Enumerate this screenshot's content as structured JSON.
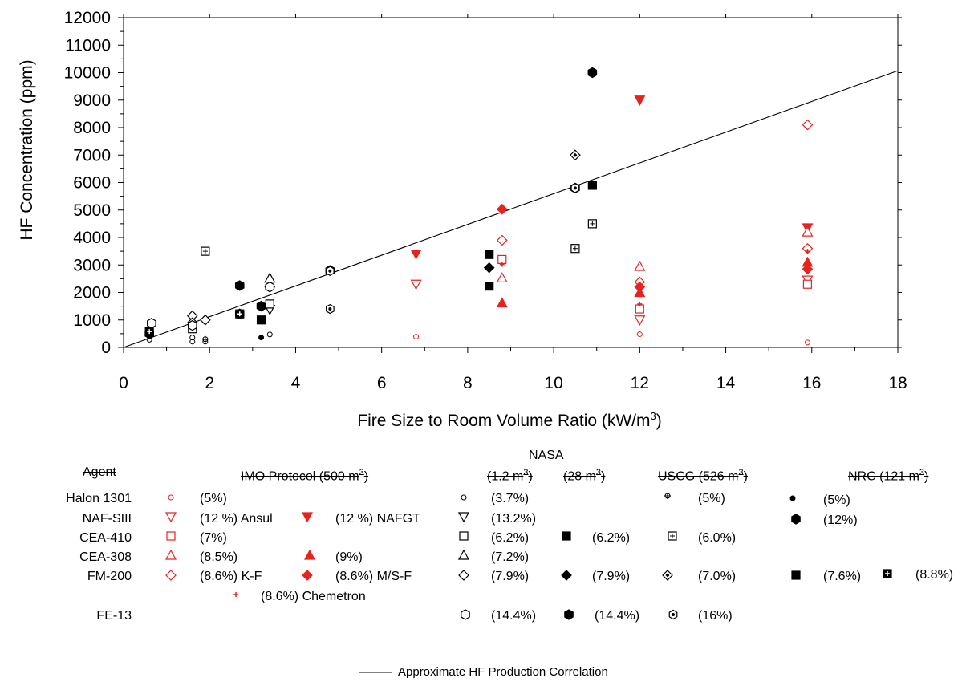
{
  "chart_data": {
    "type": "scatter",
    "xlabel": "Fire Size to Room Volume Ratio (kW/m³)",
    "ylabel": "HF Concentration (ppm)",
    "xlim": [
      0,
      18
    ],
    "ylim": [
      0,
      12000
    ],
    "x_ticks": [
      "0",
      "2",
      "4",
      "6",
      "8",
      "10",
      "12",
      "14",
      "16",
      "18"
    ],
    "y_ticks": [
      "0",
      "1000",
      "2000",
      "3000",
      "4000",
      "5000",
      "6000",
      "7000",
      "8000",
      "9000",
      "10000",
      "11000",
      "12000"
    ],
    "grid": false,
    "line": {
      "name": "Approximate HF Production Correlation",
      "points": [
        [
          0,
          0
        ],
        [
          18,
          10070
        ]
      ]
    },
    "series": [
      {
        "name": "Halon 1301 IMO (5%)",
        "marker": "circle-small",
        "color": "#e8231f",
        "filled": false,
        "points": [
          [
            6.8,
            390
          ],
          [
            12,
            480
          ],
          [
            15.9,
            180
          ]
        ]
      },
      {
        "name": "Halon 1301 NASA 1.2 m³ (3.7%)",
        "marker": "circle-small",
        "color": "#000000",
        "filled": false,
        "points": [
          [
            0.6,
            280
          ],
          [
            1.6,
            360
          ],
          [
            1.6,
            210
          ],
          [
            1.9,
            210
          ],
          [
            3.4,
            470
          ]
        ]
      },
      {
        "name": "Halon 1301 USCG (5%)",
        "marker": "circle-plus-small",
        "color": "#000000",
        "filled": false,
        "points": [
          [
            0.6,
            420
          ],
          [
            1.9,
            300
          ]
        ]
      },
      {
        "name": "Halon 1301 NRC (5%)",
        "marker": "circle-small",
        "color": "#000000",
        "filled": true,
        "points": [
          [
            3.2,
            360
          ]
        ]
      },
      {
        "name": "NAF-SIII IMO (12 %) Ansul",
        "marker": "triangle-down",
        "color": "#e8231f",
        "filled": false,
        "points": [
          [
            6.8,
            2300
          ],
          [
            12,
            1000
          ],
          [
            15.9,
            2450
          ]
        ]
      },
      {
        "name": "NAF-SIII IMO (12 %) NAFGT",
        "marker": "triangle-down",
        "color": "#e8231f",
        "filled": true,
        "points": [
          [
            6.8,
            3400
          ],
          [
            12,
            9000
          ],
          [
            15.9,
            4350
          ]
        ]
      },
      {
        "name": "NAF-SIII NASA 1.2 m³ (13.2%)",
        "marker": "triangle-down",
        "color": "#000000",
        "filled": false,
        "points": [
          [
            3.4,
            1380
          ]
        ]
      },
      {
        "name": "NAF-SIII NRC (12%)",
        "marker": "hexagon",
        "color": "#000000",
        "filled": true,
        "points": [
          [
            0.6,
            500
          ],
          [
            2.7,
            2250
          ],
          [
            2.7,
            1220
          ],
          [
            3.2,
            1500
          ]
        ]
      },
      {
        "name": "CEA-410 IMO (7%)",
        "marker": "square",
        "color": "#e8231f",
        "filled": false,
        "points": [
          [
            8.8,
            3200
          ],
          [
            12,
            1400
          ],
          [
            15.9,
            2300
          ]
        ]
      },
      {
        "name": "CEA-410 NASA 1.2 m³ (6.2%)",
        "marker": "square",
        "color": "#000000",
        "filled": false,
        "points": [
          [
            1.6,
            680
          ],
          [
            3.4,
            1580
          ]
        ]
      },
      {
        "name": "CEA-410 NASA 28 m³ (6.2%)",
        "marker": "square",
        "color": "#000000",
        "filled": true,
        "points": [
          [
            8.5,
            3380
          ],
          [
            8.5,
            2230
          ],
          [
            10.9,
            5900
          ]
        ]
      },
      {
        "name": "CEA-410 USCG (6.0%)",
        "marker": "square-plus",
        "color": "#000000",
        "filled": false,
        "points": [
          [
            1.9,
            3500
          ],
          [
            10.5,
            3600
          ],
          [
            10.9,
            4500
          ]
        ]
      },
      {
        "name": "CEA-308 IMO (8.5%)",
        "marker": "triangle-up",
        "color": "#e8231f",
        "filled": false,
        "points": [
          [
            8.8,
            2530
          ],
          [
            12,
            2950
          ],
          [
            15.9,
            4200
          ]
        ]
      },
      {
        "name": "CEA-308 IMO (9%)",
        "marker": "triangle-up",
        "color": "#e8231f",
        "filled": true,
        "points": [
          [
            8.8,
            1620
          ],
          [
            12,
            2000
          ],
          [
            15.9,
            3100
          ]
        ]
      },
      {
        "name": "CEA-308 NASA 1.2 m³ (7.2%)",
        "marker": "triangle-up",
        "color": "#000000",
        "filled": false,
        "points": [
          [
            3.4,
            2520
          ]
        ]
      },
      {
        "name": "FM-200 IMO (8.6%) K-F",
        "marker": "diamond",
        "color": "#e8231f",
        "filled": false,
        "points": [
          [
            8.8,
            3900
          ],
          [
            12,
            2380
          ],
          [
            15.9,
            8100
          ],
          [
            15.9,
            3600
          ]
        ]
      },
      {
        "name": "FM-200 IMO (8.6%) M/S-F",
        "marker": "diamond",
        "color": "#e8231f",
        "filled": true,
        "points": [
          [
            8.8,
            5030
          ],
          [
            12,
            2200
          ],
          [
            15.9,
            2850
          ]
        ]
      },
      {
        "name": "FM-200 IMO (8.6%) Chemetron",
        "marker": "plus-small",
        "color": "#e8231f",
        "filled": true,
        "points": [
          [
            8.8,
            3020
          ],
          [
            12,
            1580
          ],
          [
            15.9,
            3500
          ]
        ]
      },
      {
        "name": "FM-200 NASA 1.2 m³ (7.9%)",
        "marker": "diamond",
        "color": "#000000",
        "filled": false,
        "points": [
          [
            1.6,
            1150
          ],
          [
            1.6,
            900
          ],
          [
            1.9,
            1000
          ],
          [
            3.4,
            2200
          ]
        ]
      },
      {
        "name": "FM-200 NASA 28 m³ (7.9%)",
        "marker": "diamond",
        "color": "#000000",
        "filled": true,
        "points": [
          [
            8.5,
            2900
          ]
        ]
      },
      {
        "name": "FM-200 USCG (7.0%)",
        "marker": "diamond-dot",
        "color": "#000000",
        "filled": false,
        "points": [
          [
            10.5,
            7000
          ]
        ]
      },
      {
        "name": "FM-200 NRC (7.6%)",
        "marker": "square",
        "color": "#000000",
        "filled": true,
        "points": [
          [
            3.2,
            1000
          ]
        ]
      },
      {
        "name": "FM-200 NRC (8.8%)",
        "marker": "square-plus-filled",
        "color": "#000000",
        "filled": true,
        "points": [
          [
            0.6,
            580
          ],
          [
            2.7,
            1220
          ]
        ]
      },
      {
        "name": "FE-13 NASA 1.2 m³ (14.4%)",
        "marker": "hexagon",
        "color": "#000000",
        "filled": false,
        "points": [
          [
            0.65,
            880
          ],
          [
            1.6,
            800
          ],
          [
            3.4,
            2200
          ],
          [
            4.8,
            2800
          ],
          [
            10.5,
            5800
          ]
        ]
      },
      {
        "name": "FE-13 NASA 28 m³ (14.4%)",
        "marker": "hexagon",
        "color": "#000000",
        "filled": true,
        "points": [
          [
            10.9,
            10000
          ]
        ]
      },
      {
        "name": "FE-13 USCG (16%)",
        "marker": "hexagon-dot",
        "color": "#000000",
        "filled": false,
        "points": [
          [
            4.8,
            2780
          ],
          [
            4.8,
            1400
          ],
          [
            10.5,
            5800
          ]
        ]
      }
    ]
  },
  "legend": {
    "nasa_label": "NASA",
    "headers": {
      "agent": "Agent",
      "imo": "IMO Protocol (500 m",
      "imo_sup": "3",
      "imo_end": ")",
      "nasa_small": "(1.2 m",
      "nasa_small_sup": "3",
      "nasa_small_end": ")",
      "nasa_large": "(28 m",
      "nasa_large_sup": "3",
      "nasa_large_end": ")",
      "uscg": "USCG (526 m",
      "uscg_sup": "3",
      "uscg_end": ")",
      "nrc": "NRC (121 m",
      "nrc_sup": "3",
      "nrc_end": ")"
    },
    "agents": [
      "Halon 1301",
      "NAF-SIII",
      "CEA-410",
      "CEA-308",
      "FM-200",
      "FE-13"
    ],
    "entries": [
      {
        "id": "e1",
        "text": "(5%)"
      },
      {
        "id": "e2",
        "text": "(3.7%)"
      },
      {
        "id": "e3",
        "text": "(5%)"
      },
      {
        "id": "e4",
        "text": "(5%)"
      },
      {
        "id": "e5",
        "text": "(12 %) Ansul"
      },
      {
        "id": "e6",
        "text": "(12 %) NAFGT"
      },
      {
        "id": "e7",
        "text": "(13.2%)"
      },
      {
        "id": "e8",
        "text": "(12%)"
      },
      {
        "id": "e9",
        "text": "(7%)"
      },
      {
        "id": "e10",
        "text": "(6.2%)"
      },
      {
        "id": "e11",
        "text": "(6.2%)"
      },
      {
        "id": "e12",
        "text": "(6.0%)"
      },
      {
        "id": "e13",
        "text": "(8.5%)"
      },
      {
        "id": "e14",
        "text": "(9%)"
      },
      {
        "id": "e15",
        "text": "(7.2%)"
      },
      {
        "id": "e16",
        "text": "(8.6%) K-F"
      },
      {
        "id": "e17",
        "text": "(8.6%) M/S-F"
      },
      {
        "id": "e18",
        "text": "(7.9%)"
      },
      {
        "id": "e19",
        "text": "(7.9%)"
      },
      {
        "id": "e20",
        "text": "(7.0%)"
      },
      {
        "id": "e21",
        "text": "(7.6%)"
      },
      {
        "id": "e22",
        "text": "(8.8%)"
      },
      {
        "id": "e23",
        "text": "(8.6%) Chemetron"
      },
      {
        "id": "e24",
        "text": "(14.4%)"
      },
      {
        "id": "e25",
        "text": "(14.4%)"
      },
      {
        "id": "e26",
        "text": "(16%)"
      }
    ],
    "line_label": "Approximate HF Production Correlation"
  }
}
